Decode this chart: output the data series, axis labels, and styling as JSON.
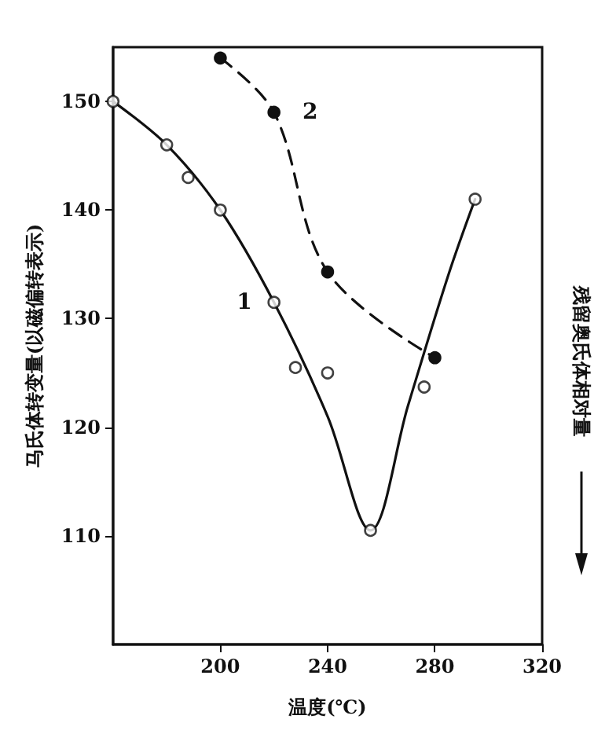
{
  "chart_data": {
    "type": "line",
    "xlabel": "温度(℃)",
    "ylabel": "马氏体转变量(以磁偏转表示)",
    "y2label": "残留奥氏体相对量",
    "xlim": [
      160,
      320
    ],
    "xticks": [
      200,
      240,
      280,
      320
    ],
    "ylim": [
      100,
      155
    ],
    "yticks": [
      110,
      120,
      130,
      140,
      150
    ],
    "grid": false,
    "legend": false,
    "series": [
      {
        "name": "1",
        "color": "#111111",
        "line_style": "solid",
        "marker": "none",
        "x": [
          160,
          180,
          200,
          220,
          240,
          256,
          270,
          285,
          295
        ],
        "values": [
          150,
          146,
          140,
          131.5,
          121,
          110.5,
          122,
          134,
          141
        ]
      },
      {
        "type": "scatter",
        "color": "#ffffff",
        "marker": "circle",
        "x": [
          160,
          180,
          188,
          200,
          220,
          228,
          240,
          256,
          276,
          295
        ],
        "values": [
          150,
          146,
          143,
          140,
          131.5,
          125.5,
          125,
          110.5,
          123.7,
          141
        ]
      },
      {
        "name": "2",
        "color": "#111111",
        "line_style": "dashed",
        "marker": "circle",
        "x": [
          200,
          220,
          240,
          280
        ],
        "values": [
          154,
          149,
          134.3,
          126.4
        ]
      }
    ]
  }
}
